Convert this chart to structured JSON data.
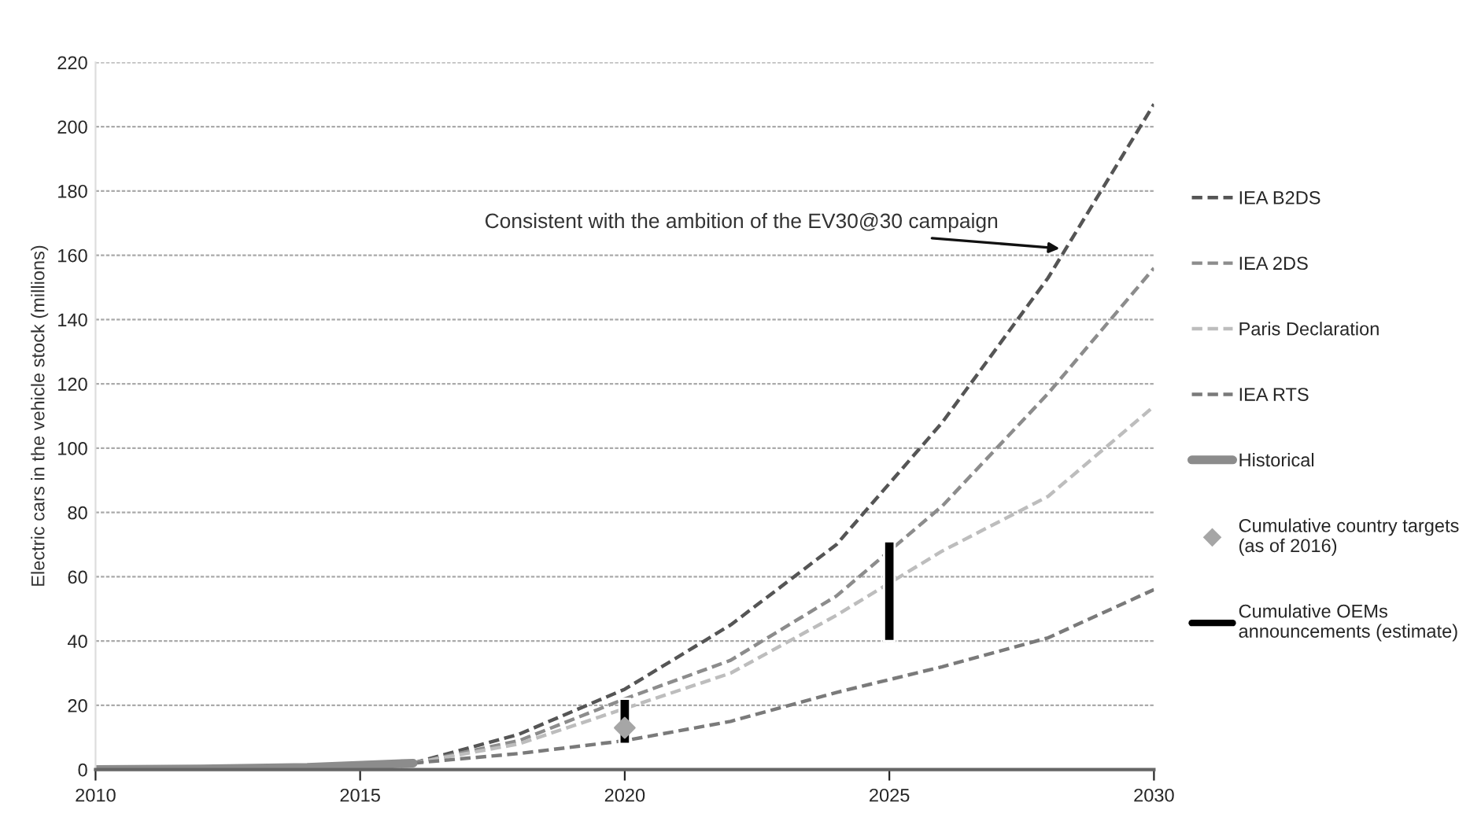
{
  "chart_data": {
    "type": "line",
    "ylabel": "Electric cars in the vehicle stock (millions)",
    "series": [
      {
        "name": "IEA B2DS",
        "color": "#555555",
        "line_style": "dashed",
        "x": [
          2016,
          2018,
          2020,
          2022,
          2024,
          2026,
          2028,
          2030
        ],
        "values": [
          2,
          11,
          25,
          45,
          70,
          108,
          153,
          207
        ]
      },
      {
        "name": "IEA 2DS",
        "color": "#8c8c8c",
        "line_style": "dashed",
        "x": [
          2016,
          2018,
          2020,
          2022,
          2024,
          2026,
          2028,
          2030
        ],
        "values": [
          2,
          9,
          22,
          34,
          54,
          82,
          117,
          156
        ]
      },
      {
        "name": "Paris Declaration",
        "color": "#bdbdbd",
        "line_style": "dashed",
        "x": [
          2016,
          2018,
          2020,
          2022,
          2024,
          2026,
          2028,
          2030
        ],
        "values": [
          2,
          8,
          19,
          30,
          48,
          68,
          85,
          113
        ]
      },
      {
        "name": "IEA RTS",
        "color": "#7a7a7a",
        "line_style": "dashed",
        "x": [
          2016,
          2018,
          2020,
          2022,
          2024,
          2026,
          2028,
          2030
        ],
        "values": [
          2,
          5,
          9,
          15,
          24,
          32,
          41,
          56
        ]
      },
      {
        "name": "Historical",
        "color": "#8c8c8c",
        "line_style": "solid",
        "x": [
          2010,
          2012,
          2014,
          2016
        ],
        "values": [
          0,
          0.2,
          0.7,
          2
        ]
      },
      {
        "name": "Cumulative country targets\n(as of 2016)",
        "type": "scatter",
        "marker": "diamond",
        "color": "#a6a6a6",
        "x": [
          2020
        ],
        "values": [
          13
        ]
      },
      {
        "name": "Cumulative OEMs\nannouncements (estimate)",
        "type": "bar",
        "color": "#000000",
        "x": [
          2020,
          2025
        ],
        "base": [
          8,
          40
        ],
        "values": [
          14,
          31
        ]
      }
    ],
    "xlim": [
      2010,
      2030
    ],
    "xticks": [
      2010,
      2015,
      2020,
      2025,
      2030
    ],
    "ylim": [
      0,
      220
    ],
    "yticks": [
      0,
      20,
      40,
      60,
      80,
      100,
      120,
      140,
      160,
      180,
      200,
      220
    ],
    "grid": "y",
    "legend": "right",
    "annotations": [
      {
        "text": "Consistent with the ambition of the EV30@30 campaign",
        "x": 2028.3,
        "y": 162
      }
    ]
  }
}
